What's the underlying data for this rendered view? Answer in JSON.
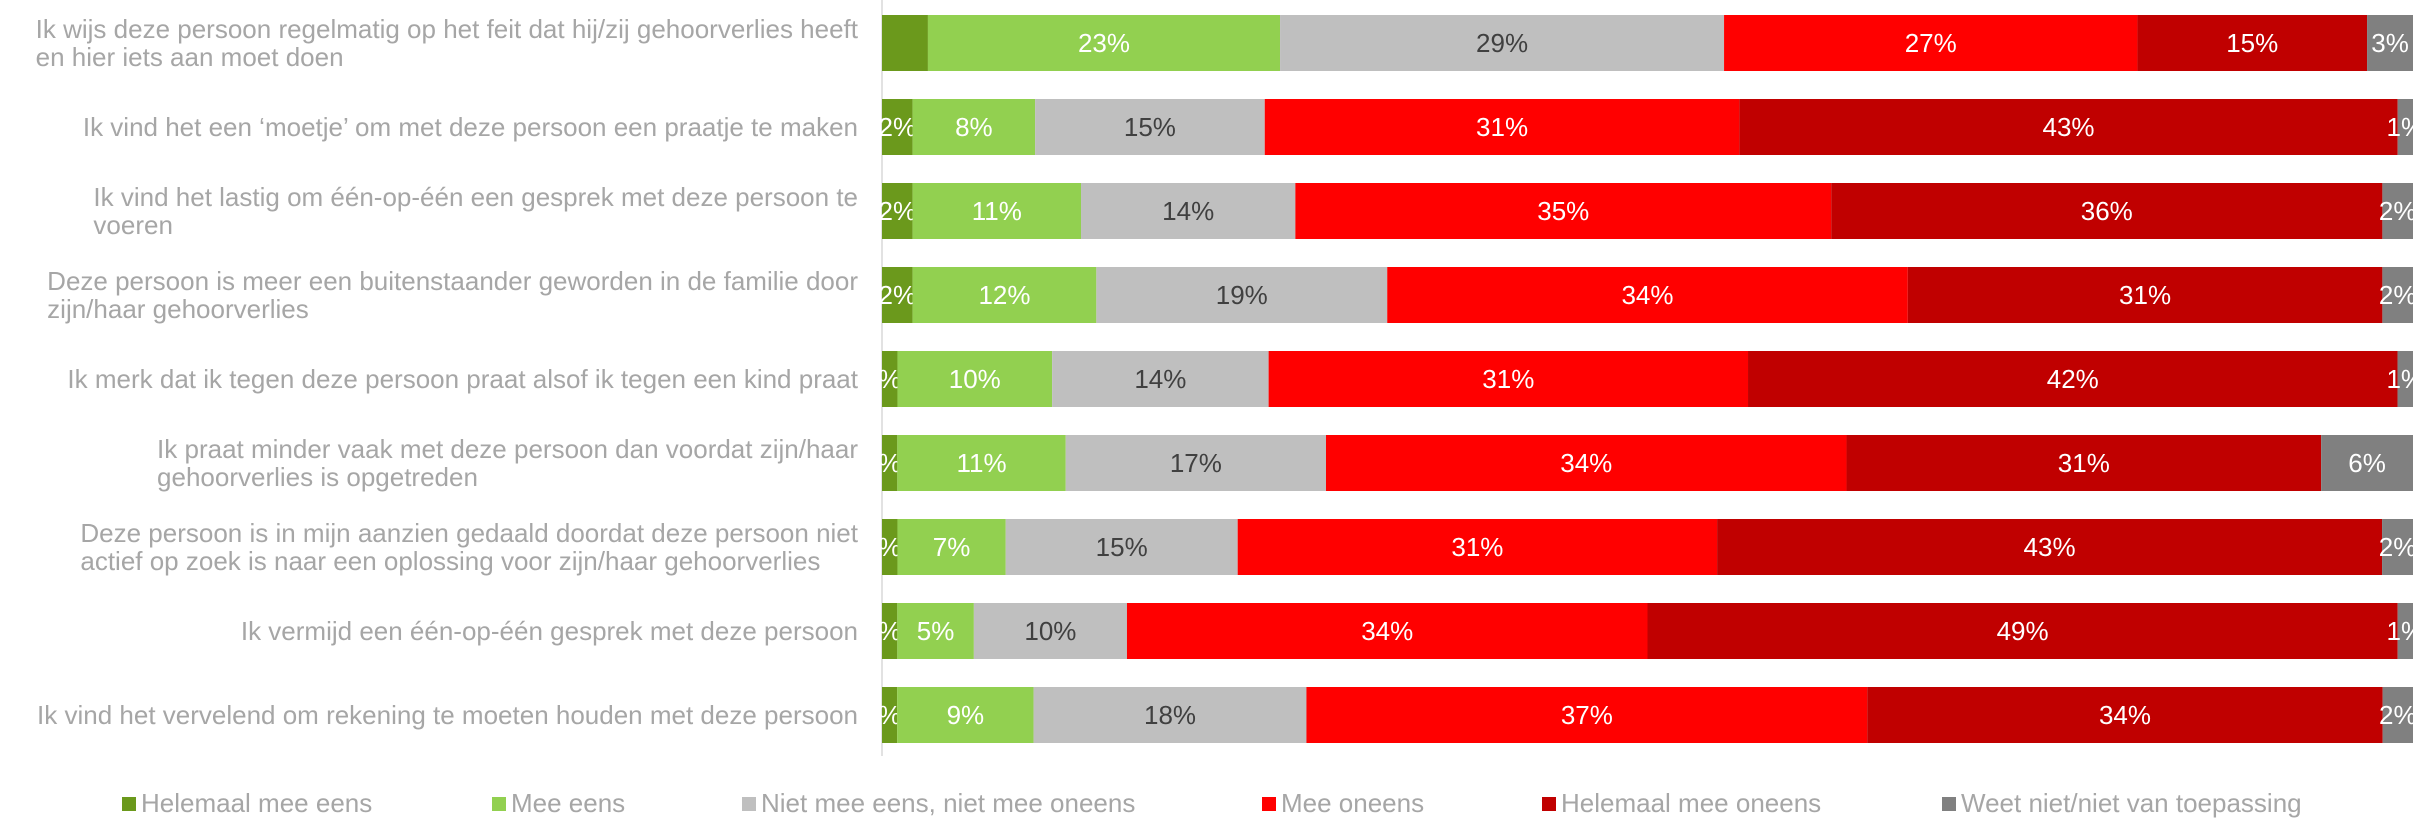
{
  "chart_data": {
    "type": "bar",
    "orientation": "horizontal-stacked-100",
    "title": "",
    "xlabel": "",
    "ylabel": "",
    "xlim": [
      0,
      100
    ],
    "grid": false,
    "legend_position": "bottom",
    "categories": [
      [
        "Ik wijs deze persoon regelmatig op het feit dat hij/zij gehoorverlies heeft",
        "en hier iets aan moet doen"
      ],
      [
        "Ik vind het een ‘moetje’ om met deze persoon een praatje te maken"
      ],
      [
        "Ik vind het lastig om één-op-één een gesprek met deze persoon te",
        "voeren"
      ],
      [
        "Deze persoon is meer een buitenstaander geworden in de familie door",
        "zijn/haar gehoorverlies"
      ],
      [
        "Ik merk dat ik tegen deze persoon praat alsof ik tegen een kind praat"
      ],
      [
        "Ik praat minder vaak met deze persoon dan voordat zijn/haar",
        "gehoorverlies is opgetreden"
      ],
      [
        "Deze persoon is in mijn aanzien gedaald doordat deze persoon niet",
        "actief op zoek is naar een oplossing voor zijn/haar gehoorverlies"
      ],
      [
        "Ik vermijd een één-op-één gesprek met deze persoon"
      ],
      [
        "Ik vind het vervelend om rekening te moeten houden met deze persoon"
      ]
    ],
    "series": [
      {
        "name": "Helemaal mee eens",
        "color": "#6b991c",
        "label_color": "#ffffff",
        "values": [
          3,
          2,
          2,
          2,
          1,
          1,
          1,
          1,
          1
        ],
        "labels": [
          "",
          "2%",
          "2%",
          "2%",
          "%",
          "%",
          "%",
          "%",
          "%"
        ]
      },
      {
        "name": "Mee eens",
        "color": "#92d050",
        "label_color": "#ffffff",
        "values": [
          23,
          8,
          11,
          12,
          10,
          11,
          7,
          5,
          9
        ],
        "labels": [
          "23%",
          "8%",
          "11%",
          "12%",
          "10%",
          "11%",
          "7%",
          "5%",
          "9%"
        ]
      },
      {
        "name": "Niet mee eens, niet mee oneens",
        "color": "#bfbfbf",
        "label_color": "#404040",
        "values": [
          29,
          15,
          14,
          19,
          14,
          17,
          15,
          10,
          18
        ],
        "labels": [
          "29%",
          "15%",
          "14%",
          "19%",
          "14%",
          "17%",
          "15%",
          "10%",
          "18%"
        ]
      },
      {
        "name": "Mee oneens",
        "color": "#ff0000",
        "label_color": "#ffffff",
        "values": [
          27,
          31,
          35,
          34,
          31,
          34,
          31,
          34,
          37
        ],
        "labels": [
          "27%",
          "31%",
          "35%",
          "34%",
          "31%",
          "34%",
          "31%",
          "34%",
          "37%"
        ]
      },
      {
        "name": "Helemaal mee oneens",
        "color": "#c00000",
        "label_color": "#ffffff",
        "values": [
          15,
          43,
          36,
          31,
          42,
          31,
          43,
          49,
          34
        ],
        "labels": [
          "15%",
          "43%",
          "36%",
          "31%",
          "42%",
          "31%",
          "43%",
          "49%",
          "34%"
        ]
      },
      {
        "name": "Weet niet/niet van toepassing",
        "color": "#808080",
        "label_color": "#ffffff",
        "values": [
          3,
          1,
          2,
          2,
          1,
          6,
          2,
          1,
          2
        ],
        "labels": [
          "3%",
          "1%",
          "2%",
          "2%",
          "1%",
          "6%",
          "2%",
          "1%",
          "2%"
        ]
      }
    ]
  }
}
